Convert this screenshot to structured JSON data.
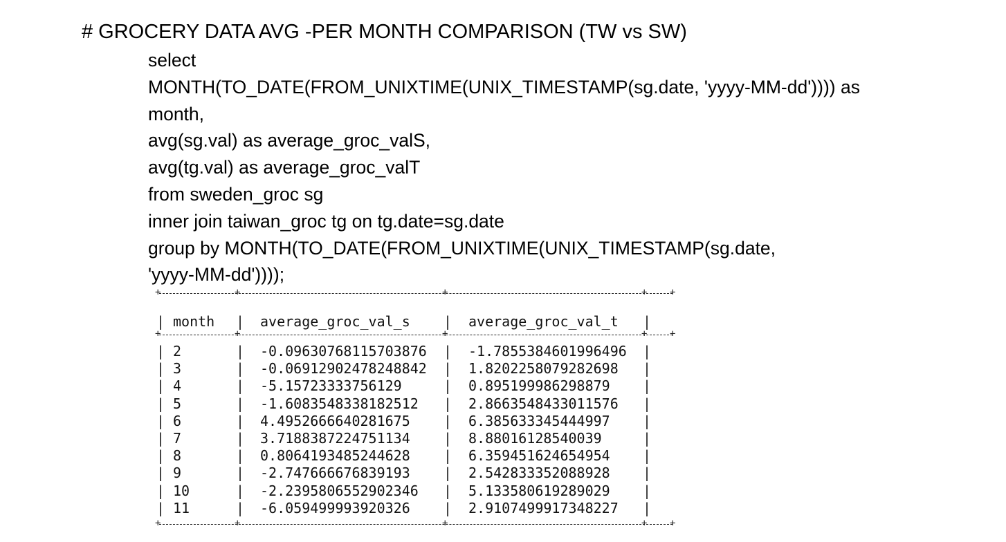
{
  "heading": "# GROCERY DATA AVG -PER MONTH COMPARISON (TW vs SW)",
  "query_lines": [
    "select",
    "MONTH(TO_DATE(FROM_UNIXTIME(UNIX_TIMESTAMP(sg.date, 'yyyy-MM-dd')))) as",
    "month,",
    "avg(sg.val) as average_groc_valS,",
    "avg(tg.val) as average_groc_valT",
    "from sweden_groc sg",
    "inner join taiwan_groc tg on tg.date=sg.date",
    "group by MONTH(TO_DATE(FROM_UNIXTIME(UNIX_TIMESTAMP(sg.date,",
    "'yyyy-MM-dd'))));"
  ],
  "result_table": {
    "columns": [
      "month",
      "average_groc_val_s",
      "average_groc_val_t"
    ],
    "rows": [
      [
        "2",
        "-0.09630768115703876",
        "-1.7855384601996496"
      ],
      [
        "3",
        "-0.06912902478248842",
        "1.8202258079282698"
      ],
      [
        "4",
        "-5.15723333756129",
        "0.895199986298879"
      ],
      [
        "5",
        "-1.6083548338182512",
        "2.8663548433011576"
      ],
      [
        "6",
        "4.4952666640281675",
        "6.385633345444997"
      ],
      [
        "7",
        "3.7188387224751134",
        "8.88016128540039"
      ],
      [
        "8",
        "0.8064193485244628",
        "6.359451624654954"
      ],
      [
        "9",
        "-2.747666676839193",
        "2.542833352088928"
      ],
      [
        "10",
        "-2.2395806552902346",
        "5.133580619289029"
      ],
      [
        "11",
        "-6.059499993920326",
        "2.9107499917348227"
      ]
    ]
  }
}
